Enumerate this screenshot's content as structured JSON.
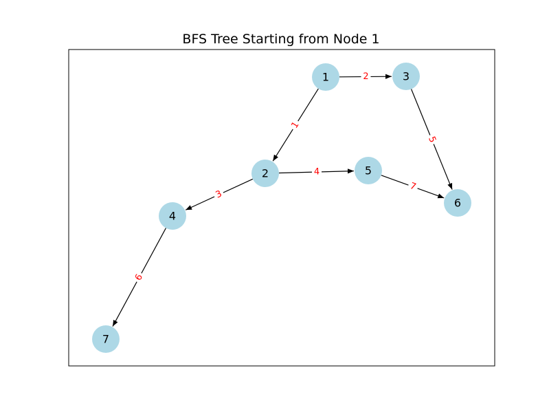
{
  "title": "BFS Tree Starting from Node 1",
  "colors": {
    "node_fill": "#add8e6",
    "edge_stroke": "#000000",
    "edge_label": "#ff0000",
    "frame": "#000000",
    "node_text": "#000000"
  },
  "nodes": [
    {
      "id": "1",
      "label": "1"
    },
    {
      "id": "2",
      "label": "2"
    },
    {
      "id": "3",
      "label": "3"
    },
    {
      "id": "4",
      "label": "4"
    },
    {
      "id": "5",
      "label": "5"
    },
    {
      "id": "6",
      "label": "6"
    },
    {
      "id": "7",
      "label": "7"
    }
  ],
  "edges": [
    {
      "from": "1",
      "to": "3",
      "label": "2"
    },
    {
      "from": "1",
      "to": "2",
      "label": "1"
    },
    {
      "from": "3",
      "to": "6",
      "label": "5"
    },
    {
      "from": "2",
      "to": "5",
      "label": "4"
    },
    {
      "from": "2",
      "to": "4",
      "label": "3"
    },
    {
      "from": "5",
      "to": "6",
      "label": "7"
    },
    {
      "from": "4",
      "to": "7",
      "label": "6"
    }
  ]
}
